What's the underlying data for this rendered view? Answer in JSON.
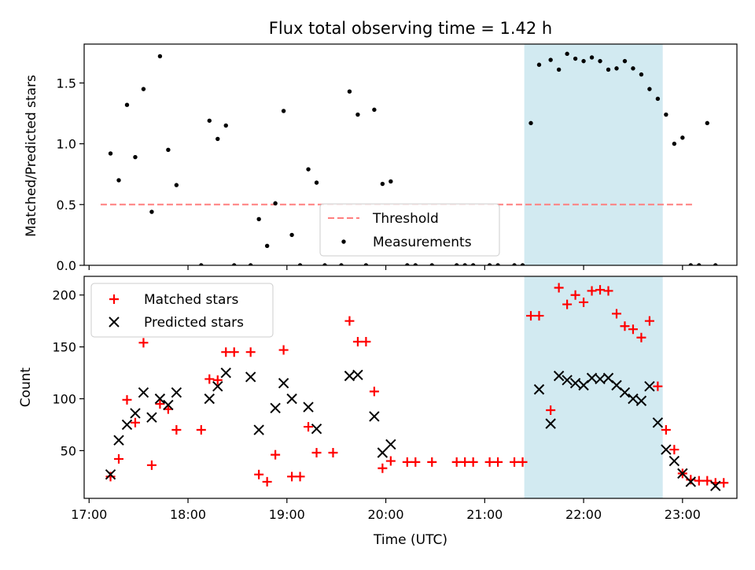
{
  "title": "Flux total observing time = 1.42 h",
  "chart_data": [
    {
      "type": "scatter",
      "panel": "top",
      "ylabel": "Matched/Predicted stars",
      "ylim": [
        0,
        1.82
      ],
      "yticks": [
        0.0,
        0.5,
        1.0,
        1.5
      ],
      "ytick_labels": [
        "0.0",
        "0.5",
        "1.0",
        "1.5"
      ],
      "grid": false,
      "legend_position": "lower center",
      "threshold": {
        "name": "Threshold",
        "value": 0.5,
        "x_range": [
          "17:07",
          "23:07"
        ],
        "color": "#ff7f7f",
        "style": "dashed"
      },
      "highlight": {
        "x_range": [
          "21:24",
          "22:48"
        ],
        "color": "#add8e6"
      },
      "series": [
        {
          "name": "Measurements",
          "marker": "dot",
          "color": "#000000",
          "points": [
            [
              "17:13",
              0.92
            ],
            [
              "17:18",
              0.7
            ],
            [
              "17:23",
              1.32
            ],
            [
              "17:28",
              0.89
            ],
            [
              "17:33",
              1.45
            ],
            [
              "17:38",
              0.44
            ],
            [
              "17:43",
              1.72
            ],
            [
              "17:48",
              0.95
            ],
            [
              "17:53",
              0.66
            ],
            [
              "18:08",
              0.0
            ],
            [
              "18:13",
              1.19
            ],
            [
              "18:18",
              1.04
            ],
            [
              "18:23",
              1.15
            ],
            [
              "18:28",
              0.0
            ],
            [
              "18:38",
              0.0
            ],
            [
              "18:43",
              0.38
            ],
            [
              "18:48",
              0.16
            ],
            [
              "18:53",
              0.51
            ],
            [
              "18:58",
              1.27
            ],
            [
              "19:03",
              0.25
            ],
            [
              "19:08",
              0.0
            ],
            [
              "19:13",
              0.79
            ],
            [
              "19:18",
              0.68
            ],
            [
              "19:23",
              0.0
            ],
            [
              "19:33",
              0.0
            ],
            [
              "19:38",
              1.43
            ],
            [
              "19:43",
              1.24
            ],
            [
              "19:48",
              0.0
            ],
            [
              "19:53",
              1.28
            ],
            [
              "19:58",
              0.67
            ],
            [
              "20:03",
              0.69
            ],
            [
              "20:13",
              0.0
            ],
            [
              "20:18",
              0.0
            ],
            [
              "20:28",
              0.0
            ],
            [
              "20:43",
              0.0
            ],
            [
              "20:48",
              0.0
            ],
            [
              "20:53",
              0.0
            ],
            [
              "21:03",
              0.0
            ],
            [
              "21:08",
              0.0
            ],
            [
              "21:18",
              0.0
            ],
            [
              "21:23",
              0.0
            ],
            [
              "21:28",
              1.17
            ],
            [
              "21:33",
              1.65
            ],
            [
              "21:40",
              1.69
            ],
            [
              "21:45",
              1.61
            ],
            [
              "21:50",
              1.74
            ],
            [
              "21:55",
              1.7
            ],
            [
              "22:00",
              1.68
            ],
            [
              "22:05",
              1.71
            ],
            [
              "22:10",
              1.68
            ],
            [
              "22:15",
              1.61
            ],
            [
              "22:20",
              1.62
            ],
            [
              "22:25",
              1.68
            ],
            [
              "22:30",
              1.62
            ],
            [
              "22:35",
              1.57
            ],
            [
              "22:40",
              1.45
            ],
            [
              "22:45",
              1.37
            ],
            [
              "22:50",
              1.24
            ],
            [
              "22:55",
              1.0
            ],
            [
              "23:00",
              1.05
            ],
            [
              "23:05",
              0.0
            ],
            [
              "23:10",
              0.0
            ],
            [
              "23:15",
              1.17
            ],
            [
              "23:20",
              0.0
            ]
          ]
        }
      ]
    },
    {
      "type": "scatter",
      "panel": "bottom",
      "xlabel": "Time (UTC)",
      "ylabel": "Count",
      "xlim": [
        "16:57",
        "23:33"
      ],
      "ylim": [
        4,
        218
      ],
      "xticks": [
        "17:00",
        "18:00",
        "19:00",
        "20:00",
        "21:00",
        "22:00",
        "23:00"
      ],
      "yticks": [
        50,
        100,
        150,
        200
      ],
      "ytick_labels": [
        "50",
        "100",
        "150",
        "200"
      ],
      "grid": false,
      "legend_position": "upper left",
      "highlight": {
        "x_range": [
          "21:24",
          "22:48"
        ],
        "color": "#add8e6"
      },
      "series": [
        {
          "name": "Matched stars",
          "marker": "plus",
          "color": "#ff0000",
          "points": [
            [
              "17:13",
              25
            ],
            [
              "17:18",
              42
            ],
            [
              "17:23",
              99
            ],
            [
              "17:28",
              77
            ],
            [
              "17:33",
              154
            ],
            [
              "17:38",
              36
            ],
            [
              "17:43",
              95
            ],
            [
              "17:48",
              90
            ],
            [
              "17:53",
              70
            ],
            [
              "18:08",
              70
            ],
            [
              "18:13",
              119
            ],
            [
              "18:18",
              118
            ],
            [
              "18:23",
              145
            ],
            [
              "18:28",
              145
            ],
            [
              "18:38",
              145
            ],
            [
              "18:43",
              27
            ],
            [
              "18:48",
              20
            ],
            [
              "18:53",
              46
            ],
            [
              "18:58",
              147
            ],
            [
              "19:03",
              25
            ],
            [
              "19:08",
              25
            ],
            [
              "19:13",
              73
            ],
            [
              "19:18",
              48
            ],
            [
              "19:28",
              48
            ],
            [
              "19:38",
              175
            ],
            [
              "19:43",
              155
            ],
            [
              "19:48",
              155
            ],
            [
              "19:53",
              107
            ],
            [
              "19:58",
              33
            ],
            [
              "20:03",
              40
            ],
            [
              "20:13",
              39
            ],
            [
              "20:18",
              39
            ],
            [
              "20:28",
              39
            ],
            [
              "20:43",
              39
            ],
            [
              "20:48",
              39
            ],
            [
              "20:53",
              39
            ],
            [
              "21:03",
              39
            ],
            [
              "21:08",
              39
            ],
            [
              "21:18",
              39
            ],
            [
              "21:23",
              39
            ],
            [
              "21:28",
              180
            ],
            [
              "21:33",
              180
            ],
            [
              "21:40",
              89
            ],
            [
              "21:45",
              207
            ],
            [
              "21:50",
              191
            ],
            [
              "21:55",
              200
            ],
            [
              "22:00",
              193
            ],
            [
              "22:05",
              204
            ],
            [
              "22:10",
              205
            ],
            [
              "22:15",
              204
            ],
            [
              "22:20",
              182
            ],
            [
              "22:25",
              170
            ],
            [
              "22:30",
              167
            ],
            [
              "22:35",
              159
            ],
            [
              "22:40",
              175
            ],
            [
              "22:45",
              112
            ],
            [
              "22:50",
              70
            ],
            [
              "22:55",
              51
            ],
            [
              "23:00",
              28
            ],
            [
              "23:05",
              22
            ],
            [
              "23:10",
              21
            ],
            [
              "23:15",
              21
            ],
            [
              "23:20",
              19
            ],
            [
              "23:25",
              19
            ]
          ]
        },
        {
          "name": "Predicted stars",
          "marker": "x",
          "color": "#000000",
          "points": [
            [
              "17:13",
              27
            ],
            [
              "17:18",
              60
            ],
            [
              "17:23",
              75
            ],
            [
              "17:28",
              86
            ],
            [
              "17:33",
              106
            ],
            [
              "17:38",
              82
            ],
            [
              "17:43",
              100
            ],
            [
              "17:48",
              94
            ],
            [
              "17:53",
              106
            ],
            [
              "18:13",
              100
            ],
            [
              "18:18",
              112
            ],
            [
              "18:23",
              125
            ],
            [
              "18:38",
              121
            ],
            [
              "18:43",
              70
            ],
            [
              "18:53",
              91
            ],
            [
              "18:58",
              115
            ],
            [
              "19:03",
              100
            ],
            [
              "19:13",
              92
            ],
            [
              "19:18",
              71
            ],
            [
              "19:38",
              122
            ],
            [
              "19:43",
              123
            ],
            [
              "19:53",
              83
            ],
            [
              "19:58",
              48
            ],
            [
              "20:03",
              56
            ],
            [
              "21:33",
              109
            ],
            [
              "21:40",
              76
            ],
            [
              "21:45",
              122
            ],
            [
              "21:50",
              118
            ],
            [
              "21:55",
              115
            ],
            [
              "22:00",
              113
            ],
            [
              "22:05",
              120
            ],
            [
              "22:10",
              119
            ],
            [
              "22:15",
              120
            ],
            [
              "22:20",
              113
            ],
            [
              "22:25",
              106
            ],
            [
              "22:30",
              100
            ],
            [
              "22:35",
              98
            ],
            [
              "22:40",
              112
            ],
            [
              "22:45",
              77
            ],
            [
              "22:50",
              51
            ],
            [
              "22:55",
              40
            ],
            [
              "23:00",
              28
            ],
            [
              "23:05",
              20
            ],
            [
              "23:20",
              16
            ]
          ]
        }
      ]
    }
  ]
}
